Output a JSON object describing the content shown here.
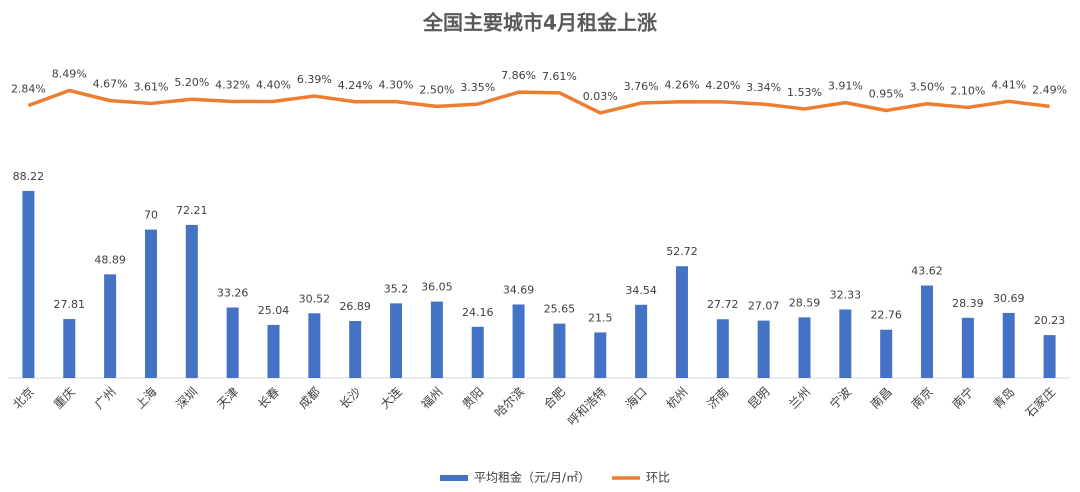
{
  "chart_data": {
    "type": "bar-line",
    "title": "全国主要城市4月租金上涨",
    "categories": [
      "北京",
      "重庆",
      "广州",
      "上海",
      "深圳",
      "天津",
      "长春",
      "成都",
      "长沙",
      "大连",
      "福州",
      "贵阳",
      "哈尔滨",
      "合肥",
      "呼和浩特",
      "海口",
      "杭州",
      "济南",
      "昆明",
      "兰州",
      "宁波",
      "南昌",
      "南京",
      "南宁",
      "青岛",
      "石家庄"
    ],
    "series": [
      {
        "name": "平均租金（元/月/㎡）",
        "type": "bar",
        "color": "#4472c4",
        "values": [
          88.22,
          27.81,
          48.89,
          70,
          72.21,
          33.26,
          25.04,
          30.52,
          26.89,
          35.2,
          36.05,
          24.16,
          34.69,
          25.65,
          21.5,
          34.54,
          52.72,
          27.72,
          27.07,
          28.59,
          32.33,
          22.76,
          43.62,
          28.39,
          30.69,
          20.23
        ]
      },
      {
        "name": "环比",
        "type": "line",
        "axis": "y2",
        "color": "#ed7d31",
        "values": [
          2.84,
          8.49,
          4.67,
          3.61,
          5.2,
          4.32,
          4.4,
          6.39,
          4.24,
          4.3,
          2.5,
          3.35,
          7.86,
          7.61,
          0.03,
          3.76,
          4.26,
          4.2,
          3.34,
          1.53,
          3.91,
          0.95,
          3.5,
          2.1,
          4.41,
          2.49
        ],
        "value_labels": [
          "2.84%",
          "8.49%",
          "4.67%",
          "3.61%",
          "5.20%",
          "4.32%",
          "4.40%",
          "6.39%",
          "4.24%",
          "4.30%",
          "2.50%",
          "3.35%",
          "7.86%",
          "7.61%",
          "0.03%",
          "3.76%",
          "4.26%",
          "4.20%",
          "3.34%",
          "1.53%",
          "3.91%",
          "0.95%",
          "3.50%",
          "2.10%",
          "4.41%",
          "2.49%"
        ]
      }
    ],
    "ylim": [
      0,
      150
    ],
    "y2lim": [
      -100,
      20
    ],
    "legend": "bottom"
  }
}
